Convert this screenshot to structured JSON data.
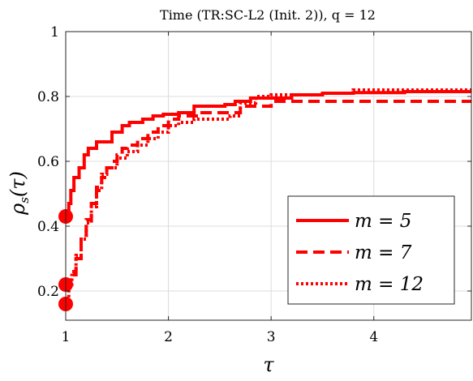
{
  "chart_data": {
    "type": "line",
    "title": "Time (TR:SC-L2 (Init. 2)), q = 12",
    "xlabel": "τ",
    "ylabel": "ρ_s(τ)",
    "ylabel_main": "ρ",
    "ylabel_sub": "s",
    "ylabel_arg": "(τ)",
    "xlim": [
      1,
      4.95
    ],
    "ylim": [
      0.11,
      1.0
    ],
    "xticks": [
      1,
      2,
      3,
      4
    ],
    "xtick_labels": [
      "1",
      "2",
      "3",
      "4"
    ],
    "yticks": [
      0.2,
      0.4,
      0.6,
      0.8,
      1.0
    ],
    "ytick_labels": [
      "0.2",
      "0.4",
      "0.6",
      "0.8",
      "1"
    ],
    "grid": true,
    "legend_position": "bottom-right",
    "line_color": "#ff0000",
    "series": [
      {
        "name": "m = 5",
        "style": "solid",
        "start_marker": 0.43,
        "x": [
          1.0,
          1.03,
          1.05,
          1.08,
          1.13,
          1.18,
          1.22,
          1.3,
          1.45,
          1.55,
          1.62,
          1.75,
          1.85,
          1.95,
          2.1,
          2.25,
          2.55,
          2.65,
          2.8,
          3.2,
          3.5,
          3.8,
          4.3,
          4.95
        ],
        "y": [
          0.43,
          0.47,
          0.51,
          0.55,
          0.58,
          0.62,
          0.64,
          0.66,
          0.69,
          0.71,
          0.72,
          0.73,
          0.74,
          0.745,
          0.75,
          0.77,
          0.775,
          0.785,
          0.795,
          0.805,
          0.81,
          0.812,
          0.815,
          0.815
        ]
      },
      {
        "name": "m = 7",
        "style": "dashed",
        "start_marker": 0.22,
        "x": [
          1.0,
          1.05,
          1.1,
          1.15,
          1.2,
          1.25,
          1.3,
          1.35,
          1.4,
          1.45,
          1.5,
          1.55,
          1.6,
          1.7,
          1.8,
          1.9,
          2.0,
          2.1,
          2.3,
          2.7,
          3.0,
          3.5,
          4.0,
          4.95
        ],
        "y": [
          0.22,
          0.25,
          0.3,
          0.36,
          0.42,
          0.47,
          0.52,
          0.55,
          0.58,
          0.6,
          0.62,
          0.64,
          0.65,
          0.67,
          0.69,
          0.71,
          0.73,
          0.74,
          0.75,
          0.77,
          0.785,
          0.785,
          0.785,
          0.785
        ]
      },
      {
        "name": "m = 12",
        "style": "dotted",
        "start_marker": 0.16,
        "x": [
          1.0,
          1.03,
          1.06,
          1.1,
          1.15,
          1.2,
          1.25,
          1.3,
          1.35,
          1.4,
          1.5,
          1.6,
          1.7,
          1.8,
          1.9,
          2.0,
          2.1,
          2.25,
          2.6,
          2.7,
          2.85,
          3.0,
          3.5,
          3.8,
          4.0,
          4.5,
          4.95
        ],
        "y": [
          0.16,
          0.21,
          0.26,
          0.31,
          0.36,
          0.41,
          0.46,
          0.51,
          0.56,
          0.58,
          0.61,
          0.63,
          0.65,
          0.67,
          0.69,
          0.71,
          0.72,
          0.73,
          0.74,
          0.78,
          0.8,
          0.805,
          0.81,
          0.82,
          0.82,
          0.82,
          0.82
        ]
      }
    ]
  }
}
